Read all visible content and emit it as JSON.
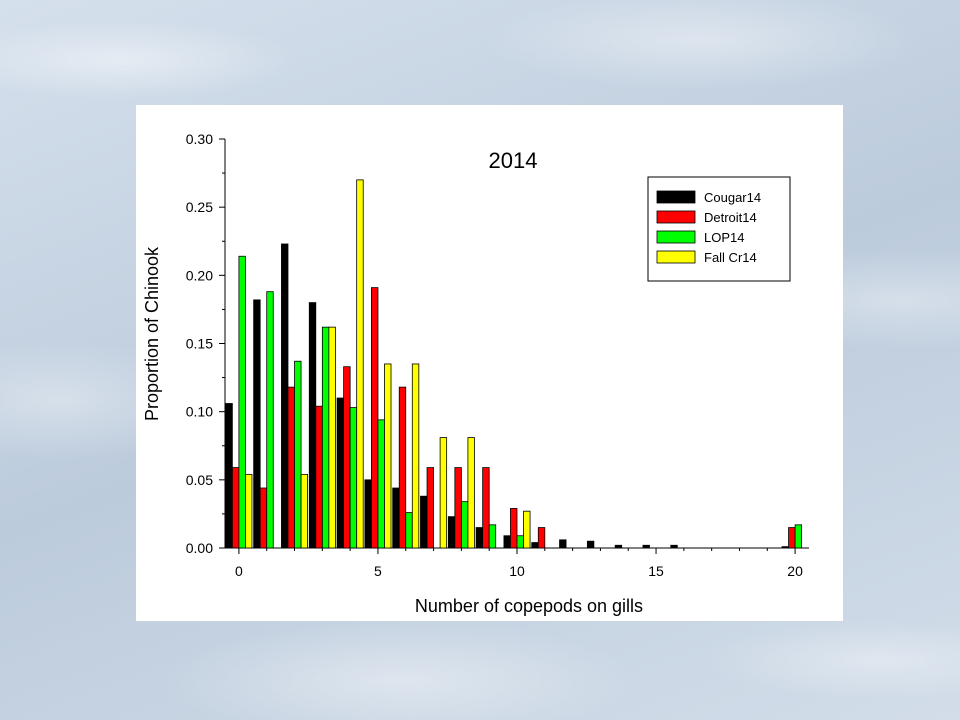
{
  "chart_data": {
    "type": "bar",
    "title": "2014",
    "xlabel": "Number of copepods on gills",
    "ylabel": "Proportion of Chinook",
    "xlim": [
      -0.5,
      20.5
    ],
    "ylim": [
      0,
      0.3
    ],
    "xticks": [
      "0",
      "5",
      "10",
      "15",
      "20"
    ],
    "yticks": [
      "0.00",
      "0.05",
      "0.10",
      "0.15",
      "0.20",
      "0.25",
      "0.30"
    ],
    "legend_position": "top-right",
    "categories": [
      0,
      1,
      2,
      3,
      4,
      5,
      6,
      7,
      8,
      9,
      10,
      11,
      12,
      13,
      14,
      15,
      16,
      17,
      18,
      19,
      20
    ],
    "series": [
      {
        "name": "Cougar14",
        "color": "#000000",
        "values": [
          0.106,
          0.182,
          0.223,
          0.18,
          0.11,
          0.05,
          0.044,
          0.038,
          0.023,
          0.015,
          0.009,
          0.004,
          0.006,
          0.005,
          0.002,
          0.002,
          0.002,
          0.0,
          0.0,
          0.0,
          0.001
        ]
      },
      {
        "name": "Detroit14",
        "color": "#ff0000",
        "values": [
          0.059,
          0.044,
          0.118,
          0.104,
          0.133,
          0.191,
          0.118,
          0.059,
          0.059,
          0.059,
          0.029,
          0.015,
          0.0,
          0.0,
          0.0,
          0.0,
          0.0,
          0.0,
          0.0,
          0.0,
          0.015
        ]
      },
      {
        "name": "LOP14",
        "color": "#00ff00",
        "values": [
          0.214,
          0.188,
          0.137,
          0.162,
          0.103,
          0.094,
          0.026,
          0.0,
          0.034,
          0.017,
          0.009,
          0.0,
          0.0,
          0.0,
          0.0,
          0.0,
          0.0,
          0.0,
          0.0,
          0.0,
          0.017
        ]
      },
      {
        "name": "Fall Cr14",
        "color": "#ffff00",
        "values": [
          0.054,
          0.0,
          0.054,
          0.162,
          0.27,
          0.135,
          0.135,
          0.081,
          0.081,
          0.0,
          0.027,
          0.0,
          0.0,
          0.0,
          0.0,
          0.0,
          0.0,
          0.0,
          0.0,
          0.0,
          0.0
        ]
      }
    ]
  }
}
